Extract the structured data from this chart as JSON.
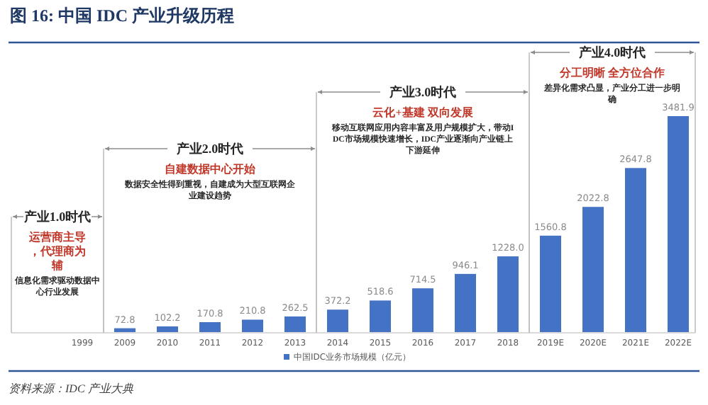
{
  "chart_data": {
    "type": "bar",
    "title": "图 16: 中国 IDC 产业升级历程",
    "categories": [
      "1999",
      "2009",
      "2010",
      "2011",
      "2012",
      "2013",
      "2014",
      "2015",
      "2016",
      "2017",
      "2018",
      "2019E",
      "2020E",
      "2021E",
      "2022E"
    ],
    "series": [
      {
        "name": "中国IDC业务市场规模（亿元）",
        "color": "#4472c4",
        "values": [
          null,
          72.8,
          102.2,
          170.8,
          210.8,
          262.5,
          372.2,
          518.6,
          714.5,
          946.1,
          1228.0,
          1560.8,
          2022.8,
          2647.8,
          3481.9
        ],
        "value_labels": [
          null,
          "72.8",
          "102.2",
          "170.8",
          "210.8",
          "262.5",
          "372.2",
          "518.6",
          "714.5",
          "946.1",
          "1228.0",
          "1560.8",
          "2022.8",
          "2647.8",
          "3481.9"
        ]
      }
    ],
    "legend": "bottom",
    "annotations": [
      "产业1.0时代",
      "运营商主导，代理商为辅",
      "信息化需求驱动数据中心行业发展",
      "产业2.0时代",
      "自建数据中心开始",
      "数据安全性得到重视，自建成为大型互联网企业建设趋势",
      "产业3.0时代",
      "云化+基建 双向发展",
      "移动互联网应用内容丰富及用户规模扩大，带动IDC市场规模快速增长，IDC产业逐渐向产业链上下游延伸",
      "产业4.0时代",
      "分工明晰 全方位合作",
      "差异化需求凸显，产业分工进一步明确",
      "资料来源：IDC 产业大典"
    ]
  }
}
